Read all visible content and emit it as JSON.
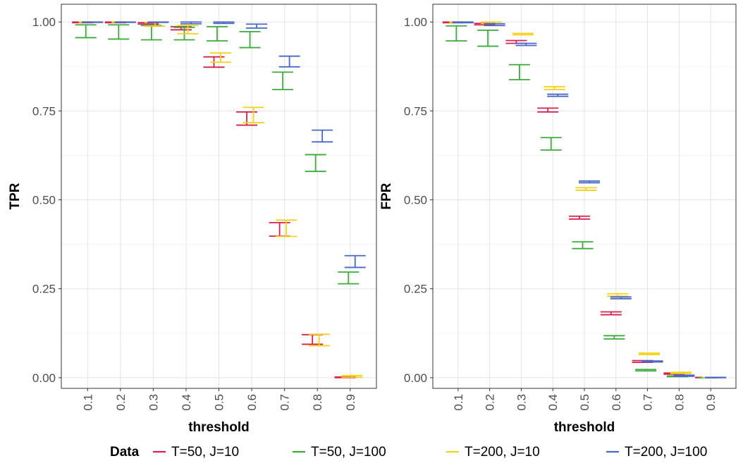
{
  "legend": {
    "title": "Data",
    "entries": [
      {
        "label": "T=50, J=10",
        "color": "#d6204f"
      },
      {
        "label": "T=50, J=100",
        "color": "#3daa3d"
      },
      {
        "label": "T=200, J=10",
        "color": "#f2d21a"
      },
      {
        "label": "T=200, J=100",
        "color": "#4a68c7"
      }
    ]
  },
  "chart_data": [
    {
      "type": "errorbar",
      "xlabel": "threshold",
      "ylabel": "TPR",
      "ylim": [
        -0.03,
        1.05
      ],
      "yticks": [
        0.0,
        0.25,
        0.5,
        0.75,
        1.0
      ],
      "ytick_labels": [
        "0.00",
        "0.25",
        "0.50",
        "0.75",
        "1.00"
      ],
      "categories": [
        "0.1",
        "0.2",
        "0.3",
        "0.4",
        "0.5",
        "0.6",
        "0.7",
        "0.8",
        "0.9"
      ],
      "grid": true,
      "series": [
        {
          "name": "T=50, J=10",
          "color": "#d6204f",
          "intervals": [
            [
              0.998,
              1.0
            ],
            [
              0.998,
              1.0
            ],
            [
              0.994,
              0.998
            ],
            [
              0.978,
              0.987
            ],
            [
              0.873,
              0.902
            ],
            [
              0.71,
              0.747
            ],
            [
              0.398,
              0.436
            ],
            [
              0.094,
              0.121
            ],
            [
              0.0,
              0.002
            ]
          ]
        },
        {
          "name": "T=50, J=100",
          "color": "#3daa3d",
          "intervals": [
            [
              0.956,
              0.992
            ],
            [
              0.952,
              0.992
            ],
            [
              0.95,
              0.99
            ],
            [
              0.95,
              0.985
            ],
            [
              0.947,
              0.987
            ],
            [
              0.928,
              0.973
            ],
            [
              0.81,
              0.859
            ],
            [
              0.58,
              0.627
            ],
            [
              0.264,
              0.297
            ]
          ]
        },
        {
          "name": "T=200, J=10",
          "color": "#f2d21a",
          "intervals": [
            [
              0.999,
              1.0
            ],
            [
              0.999,
              1.0
            ],
            [
              0.988,
              0.999
            ],
            [
              0.967,
              0.99
            ],
            [
              0.887,
              0.913
            ],
            [
              0.717,
              0.76
            ],
            [
              0.397,
              0.443
            ],
            [
              0.09,
              0.122
            ],
            [
              0.001,
              0.006
            ]
          ]
        },
        {
          "name": "T=200, J=100",
          "color": "#4a68c7",
          "intervals": [
            [
              0.999,
              1.0
            ],
            [
              0.999,
              1.0
            ],
            [
              0.999,
              1.0
            ],
            [
              0.995,
              1.0
            ],
            [
              0.996,
              1.0
            ],
            [
              0.983,
              0.994
            ],
            [
              0.874,
              0.904
            ],
            [
              0.663,
              0.696
            ],
            [
              0.31,
              0.343
            ]
          ]
        }
      ]
    },
    {
      "type": "errorbar",
      "xlabel": "threshold",
      "ylabel": "FPR",
      "ylim": [
        -0.03,
        1.05
      ],
      "yticks": [
        0.0,
        0.25,
        0.5,
        0.75,
        1.0
      ],
      "ytick_labels": [
        "0.00",
        "0.25",
        "0.50",
        "0.75",
        "1.00"
      ],
      "categories": [
        "0.1",
        "0.2",
        "0.3",
        "0.4",
        "0.5",
        "0.6",
        "0.7",
        "0.8",
        "0.9"
      ],
      "grid": true,
      "series": [
        {
          "name": "T=50, J=10",
          "color": "#d6204f",
          "intervals": [
            [
              0.998,
              1.0
            ],
            [
              0.992,
              0.996
            ],
            [
              0.94,
              0.948
            ],
            [
              0.747,
              0.758
            ],
            [
              0.446,
              0.454
            ],
            [
              0.177,
              0.185
            ],
            [
              0.043,
              0.048
            ],
            [
              0.01,
              0.013
            ],
            [
              0.0,
              0.001
            ]
          ]
        },
        {
          "name": "T=50, J=100",
          "color": "#3daa3d",
          "intervals": [
            [
              0.947,
              0.989
            ],
            [
              0.932,
              0.977
            ],
            [
              0.838,
              0.88
            ],
            [
              0.64,
              0.675
            ],
            [
              0.363,
              0.382
            ],
            [
              0.109,
              0.118
            ],
            [
              0.019,
              0.023
            ],
            [
              0.003,
              0.005
            ],
            [
              0.0,
              0.0
            ]
          ]
        },
        {
          "name": "T=200, J=10",
          "color": "#f2d21a",
          "intervals": [
            [
              0.999,
              1.0
            ],
            [
              0.995,
              1.0
            ],
            [
              0.964,
              0.968
            ],
            [
              0.81,
              0.818
            ],
            [
              0.527,
              0.534
            ],
            [
              0.229,
              0.236
            ],
            [
              0.065,
              0.069
            ],
            [
              0.012,
              0.015
            ],
            [
              0.001,
              0.001
            ]
          ]
        },
        {
          "name": "T=200, J=100",
          "color": "#4a68c7",
          "intervals": [
            [
              0.998,
              1.0
            ],
            [
              0.99,
              0.995
            ],
            [
              0.934,
              0.94
            ],
            [
              0.791,
              0.797
            ],
            [
              0.548,
              0.553
            ],
            [
              0.222,
              0.227
            ],
            [
              0.044,
              0.047
            ],
            [
              0.004,
              0.007
            ],
            [
              0.0,
              0.001
            ]
          ]
        }
      ]
    }
  ]
}
